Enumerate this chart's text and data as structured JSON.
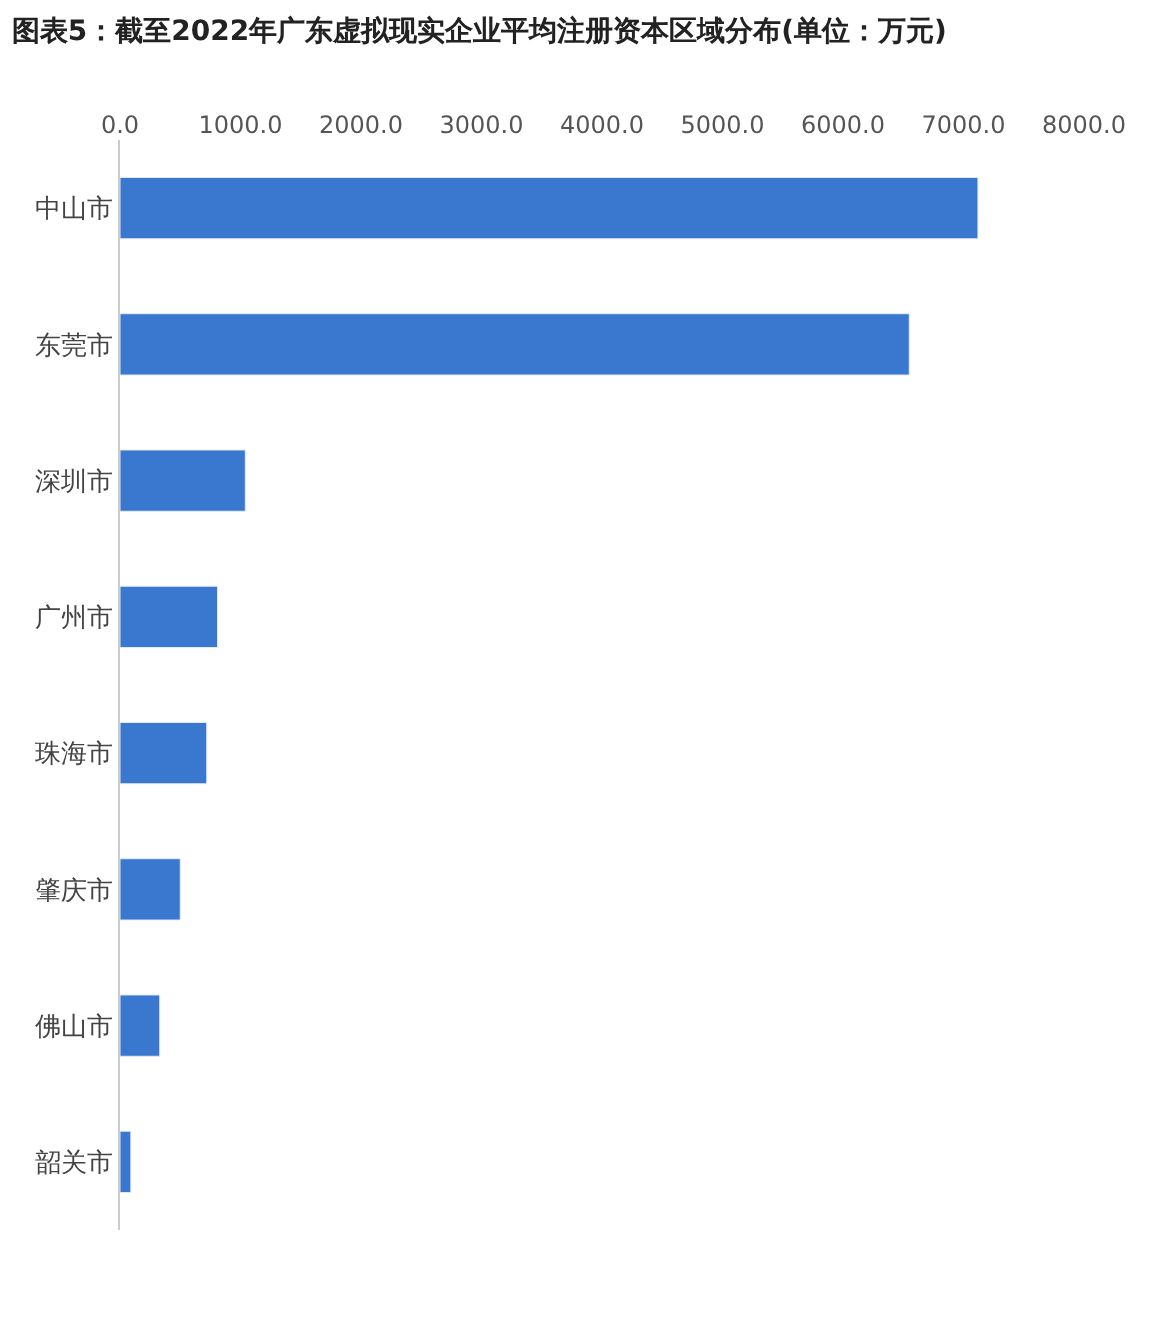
{
  "chart_data": {
    "type": "bar",
    "orientation": "horizontal",
    "title": "图表5：截至2022年广东虚拟现实企业平均注册资本区域分布(单位：万元)",
    "categories": [
      "中山市",
      "东莞市",
      "深圳市",
      "广州市",
      "珠海市",
      "肇庆市",
      "佛山市",
      "韶关市"
    ],
    "values": [
      7120,
      6550,
      1040,
      810,
      720,
      500,
      330,
      90
    ],
    "color": "#3a78d0",
    "xlim": [
      0,
      8000
    ],
    "xticks": [
      {
        "value": 0,
        "label": "0.0"
      },
      {
        "value": 1000,
        "label": "1000.0"
      },
      {
        "value": 2000,
        "label": "2000.0"
      },
      {
        "value": 3000,
        "label": "3000.0"
      },
      {
        "value": 4000,
        "label": "4000.0"
      },
      {
        "value": 5000,
        "label": "5000.0"
      },
      {
        "value": 6000,
        "label": "6000.0"
      },
      {
        "value": 7000,
        "label": "7000.0"
      },
      {
        "value": 8000,
        "label": "8000.0"
      }
    ],
    "legend": false
  }
}
